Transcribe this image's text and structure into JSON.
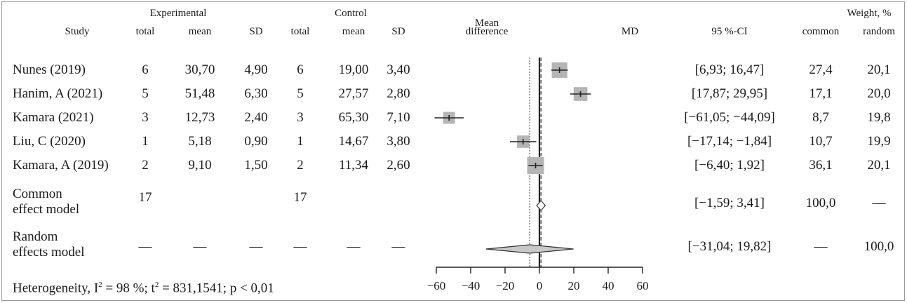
{
  "header": {
    "experimental": "Experimental",
    "control": "Control",
    "weight": "Weight, %",
    "study": "Study",
    "exp_total": "total",
    "exp_mean": "mean",
    "exp_sd": "SD",
    "ctl_total": "total",
    "ctl_mean": "mean",
    "ctl_sd": "SD",
    "effect_top": "Mean",
    "effect_bottom": "difference",
    "md": "MD",
    "ci": "95 %-CI",
    "w_common": "common",
    "w_random": "random"
  },
  "rows": [
    {
      "study": "Nunes (2019)",
      "e_total": "6",
      "e_mean": "30,70",
      "e_sd": "4,90",
      "c_total": "6",
      "c_mean": "19,00",
      "c_sd": "3,40",
      "ci": "[6,93; 16,47]",
      "w_common": "27,4",
      "w_random": "20,1"
    },
    {
      "study": "Hanim, A (2021)",
      "e_total": "5",
      "e_mean": "51,48",
      "e_sd": "6,30",
      "c_total": "5",
      "c_mean": "27,57",
      "c_sd": "2,80",
      "ci": "[17,87; 29,95]",
      "w_common": "17,1",
      "w_random": "20,0"
    },
    {
      "study": "Kamara (2021)",
      "e_total": "3",
      "e_mean": "12,73",
      "e_sd": "2,40",
      "c_total": "3",
      "c_mean": "65,30",
      "c_sd": "7,10",
      "ci": "[−61,05; −44,09]",
      "w_common": "8,7",
      "w_random": "19,8"
    },
    {
      "study": "Liu, C (2020)",
      "e_total": "1",
      "e_mean": "5,18",
      "e_sd": "0,90",
      "c_total": "1",
      "c_mean": "14,67",
      "c_sd": "3,80",
      "ci": "[−17,14; −1,84]",
      "w_common": "10,7",
      "w_random": "19,9"
    },
    {
      "study": "Kamara, A (2019)",
      "e_total": "2",
      "e_mean": "9,10",
      "e_sd": "1,50",
      "c_total": "2",
      "c_mean": "11,34",
      "c_sd": "2,60",
      "ci": "[−6,40; 1,92]",
      "w_common": "36,1",
      "w_random": "20,1"
    }
  ],
  "common": {
    "label1": "Common",
    "label2": "effect model",
    "e_total": "17",
    "c_total": "17",
    "ci": "[−1,59; 3,41]",
    "w_common": "100,0",
    "w_random": "—"
  },
  "random": {
    "label1": "Random",
    "label2": "effects model",
    "e_total": "—",
    "e_mean": "—",
    "e_sd": "—",
    "c_total": "—",
    "c_mean": "—",
    "c_sd": "—",
    "ci": "[−31,04; 19,82]",
    "w_common": "—",
    "w_random": "100,0"
  },
  "heterogeneity": {
    "prefix": "Heterogeneity, I",
    "i2_sup": "2",
    "i2_value": " = 98 %; t",
    "t2_sup": "2",
    "rest": " = 831,1541; p < 0,01"
  },
  "chart_data": {
    "type": "forest",
    "xlim": [
      -60,
      60
    ],
    "xticks": [
      -60,
      -40,
      -20,
      0,
      20,
      40,
      60
    ],
    "xtick_labels": [
      "−60",
      "−40",
      "−20",
      "0",
      "20",
      "40",
      "60"
    ],
    "studies": [
      {
        "name": "Nunes (2019)",
        "md": 11.7,
        "lower": 6.93,
        "upper": 16.47,
        "weight_common": 27.4
      },
      {
        "name": "Hanim, A (2021)",
        "md": 23.91,
        "lower": 17.87,
        "upper": 29.95,
        "weight_common": 17.1
      },
      {
        "name": "Kamara (2021)",
        "md": -52.57,
        "lower": -61.05,
        "upper": -44.09,
        "weight_common": 8.7
      },
      {
        "name": "Liu, C (2020)",
        "md": -9.49,
        "lower": -17.14,
        "upper": -1.84,
        "weight_common": 10.7
      },
      {
        "name": "Kamara, A (2019)",
        "md": -2.24,
        "lower": -6.4,
        "upper": 1.92,
        "weight_common": 36.1
      }
    ],
    "common_effect": {
      "md": 0.91,
      "lower": -1.59,
      "upper": 3.41
    },
    "random_effects": {
      "md": -5.61,
      "lower": -31.04,
      "upper": 19.82
    },
    "null_line": 0,
    "colors": {
      "box": "#b5b5b5",
      "line": "#222222",
      "diamond_fill": "#c8c8c8"
    }
  }
}
